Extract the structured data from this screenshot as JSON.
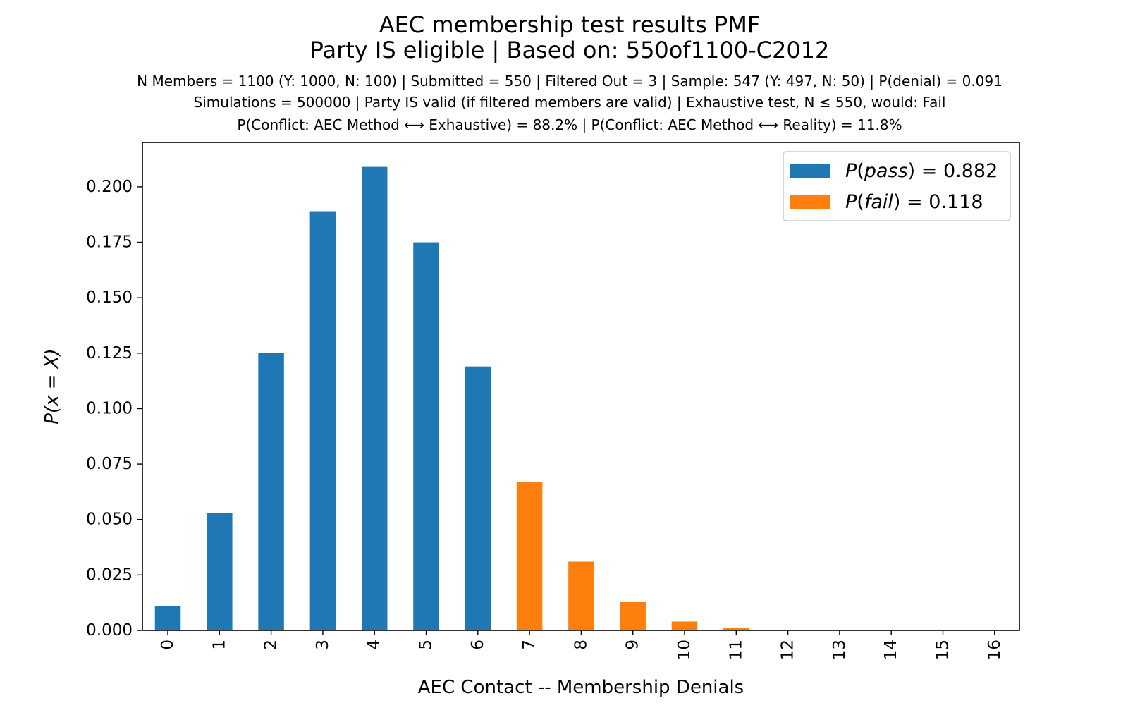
{
  "chart_data": {
    "type": "bar",
    "title": "AEC membership test results PMF",
    "subtitle": "Party IS eligible | Based on: 550of1100-C2012",
    "info_lines": [
      "N Members = 1100 (Y: 1000, N: 100) | Submitted = 550 | Filtered Out = 3 | Sample: 547 (Y: 497, N: 50) | P(denial) = 0.091",
      "Simulations = 500000 | Party IS valid (if filtered members are valid) | Exhaustive test, N ≤ 550, would: Fail",
      "P(Conflict: AEC Method ⟷ Exhaustive) = 88.2% | P(Conflict: AEC Method ⟷ Reality) = 11.8%"
    ],
    "xlabel": "AEC Contact -- Membership Denials",
    "ylabel": "P(x = X)",
    "ylim": [
      0,
      0.22
    ],
    "yticks": [
      "0.000",
      "0.025",
      "0.050",
      "0.075",
      "0.100",
      "0.125",
      "0.150",
      "0.175",
      "0.200"
    ],
    "categories": [
      "0",
      "1",
      "2",
      "3",
      "4",
      "5",
      "6",
      "7",
      "8",
      "9",
      "10",
      "11",
      "12",
      "13",
      "14",
      "15",
      "16"
    ],
    "series": [
      {
        "name": "P(pass) = 0.882",
        "color": "#1f77b4",
        "values": [
          0.011,
          0.053,
          0.125,
          0.189,
          0.209,
          0.175,
          0.119,
          0,
          0,
          0,
          0,
          0,
          0,
          0,
          0,
          0,
          0
        ]
      },
      {
        "name": "P(fail) = 0.118",
        "color": "#ff7f0e",
        "values": [
          0,
          0,
          0,
          0,
          0,
          0,
          0,
          0.067,
          0.031,
          0.013,
          0.004,
          0.0012,
          0.0002,
          3e-05,
          0,
          0,
          0
        ]
      }
    ],
    "legend": {
      "position": "upper right",
      "entries": [
        {
          "symbol": "P",
          "paren_open": "(",
          "word": "pass",
          "rest": ") = 0.882"
        },
        {
          "symbol": "P",
          "paren_open": "(",
          "word": "fail",
          "rest": ") = 0.118"
        }
      ]
    },
    "grid": false
  }
}
